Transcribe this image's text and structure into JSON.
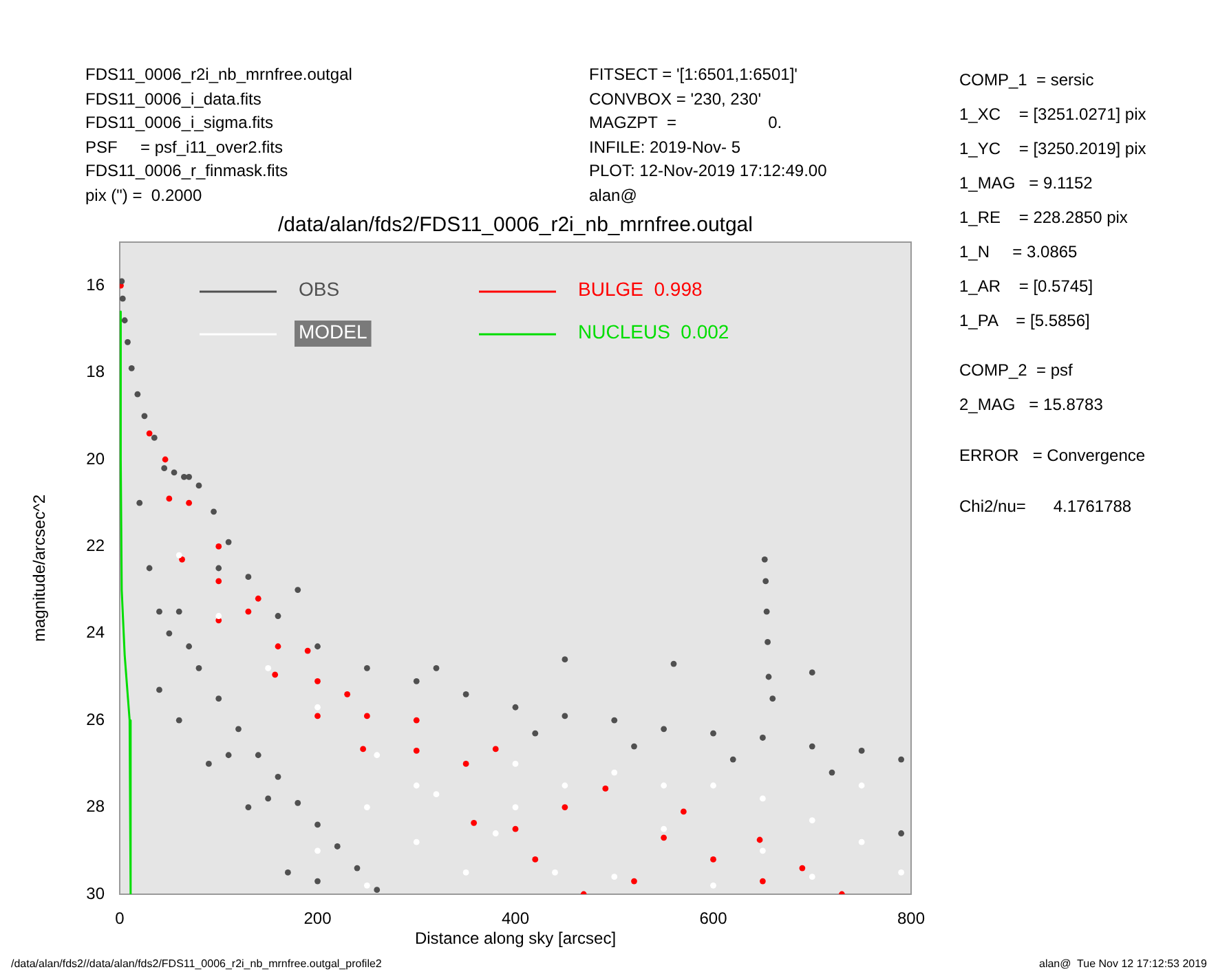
{
  "chart_data": {
    "type": "scatter",
    "title": "/data/alan/fds2/FDS11_0006_r2i_nb_mrnfree.outgal",
    "xlabel": "Distance along sky [arcsec]",
    "ylabel": "magnitude/arcsec^2",
    "xlim": [
      0,
      800
    ],
    "xticks": [
      0,
      200,
      400,
      600,
      800
    ],
    "ylim": [
      30,
      15
    ],
    "yticks": [
      16,
      18,
      20,
      22,
      24,
      26,
      28,
      30
    ],
    "grid": false,
    "legend": "top left",
    "marker": "circle",
    "series": [
      {
        "name": "OBS",
        "type": "scatter",
        "color": "#505050",
        "x": [
          2,
          3,
          5,
          8,
          12,
          18,
          25,
          35,
          45,
          55,
          65,
          70,
          80,
          95,
          110,
          130,
          160,
          200,
          250,
          300,
          350,
          400,
          450,
          500,
          550,
          600,
          650,
          700,
          750,
          790,
          320,
          450,
          560,
          700,
          180,
          100,
          652,
          653,
          654,
          655,
          656,
          660,
          20,
          30,
          40,
          50,
          60,
          70,
          80,
          100,
          120,
          140,
          160,
          180,
          200,
          220,
          240,
          260,
          90,
          130,
          170,
          110,
          150,
          200,
          40,
          60,
          790,
          420,
          520,
          620,
          720
        ],
        "values": [
          15.9,
          16.3,
          16.8,
          17.3,
          17.9,
          18.5,
          19,
          19.5,
          20.2,
          20.3,
          20.4,
          20.4,
          20.6,
          21.2,
          21.9,
          22.7,
          23.6,
          24.3,
          24.8,
          25.1,
          25.4,
          25.7,
          25.9,
          26,
          26.2,
          26.3,
          26.4,
          26.6,
          26.7,
          26.9,
          24.8,
          24.6,
          24.7,
          24.9,
          23,
          22.5,
          22.3,
          22.8,
          23.5,
          24.2,
          25,
          25.5,
          21,
          22.5,
          23.5,
          24,
          23.5,
          24.3,
          24.8,
          25.5,
          26.2,
          26.8,
          27.3,
          27.9,
          28.4,
          28.9,
          29.4,
          29.9,
          27,
          28,
          29.5,
          26.8,
          27.8,
          29.7,
          25.3,
          26,
          28.6,
          26.3,
          26.6,
          26.9,
          27.2
        ]
      },
      {
        "name": "MODEL",
        "type": "scatter",
        "color": "#ffffff",
        "x": [
          250,
          300,
          350,
          400,
          450,
          500,
          550,
          600,
          650,
          700,
          750,
          790,
          700,
          600,
          500,
          250,
          200,
          300,
          400,
          550,
          650,
          750,
          60,
          100,
          150,
          200,
          260,
          320,
          380,
          440
        ],
        "values": [
          28,
          28.8,
          29.5,
          28,
          27.5,
          27.2,
          27.5,
          27.5,
          27.8,
          28.3,
          28.8,
          29.5,
          29.6,
          29.8,
          29.6,
          29.8,
          29,
          27.5,
          27,
          28.5,
          29,
          27.5,
          22.2,
          23.6,
          24.8,
          25.7,
          26.8,
          27.7,
          28.6,
          29.5
        ]
      },
      {
        "name": "BULGE  0.998",
        "type": "scatter",
        "color": "#ff0000",
        "x": [
          1,
          46,
          70,
          100,
          140,
          190,
          230,
          300,
          380,
          491,
          570,
          647,
          690,
          730,
          30,
          50,
          63,
          100,
          157,
          200,
          246,
          358,
          420,
          469,
          100,
          160,
          250,
          350,
          450,
          550,
          600,
          650,
          520,
          400,
          300,
          200,
          130
        ],
        "values": [
          16,
          20,
          21,
          22,
          23.2,
          24.4,
          25.4,
          26,
          26.66,
          27.57,
          28.1,
          28.75,
          29.4,
          30,
          19.4,
          20.9,
          22.3,
          23.7,
          24.95,
          25.9,
          26.66,
          28.36,
          29.2,
          30,
          22.8,
          24.3,
          25.9,
          27,
          28,
          28.7,
          29.2,
          29.7,
          29.7,
          28.5,
          26.7,
          25.1,
          23.5
        ]
      },
      {
        "name": "NUCLEUS  0.002",
        "type": "line",
        "marker": "none",
        "color": "#00dd00",
        "x": [
          0,
          1,
          2,
          5,
          10,
          11
        ],
        "values": [
          16.6,
          20,
          23,
          24.5,
          26,
          30
        ]
      }
    ],
    "annotations": [
      "FDS11_0006_r2i_nb_mrnfree.outgal",
      "FDS11_0006_i_data.fits",
      "FDS11_0006_i_sigma.fits",
      "PSF     = psf_i11_over2.fits",
      "FDS11_0006_r_finmask.fits",
      "pix (\") =  0.2000",
      "FITSECT = '[1:6501,1:6501]'",
      "CONVBOX = '230, 230'",
      "MAGZPT  =                    0.",
      "INFILE: 2019-Nov- 5",
      "PLOT: 12-Nov-2019 17:12:49.00",
      "alan@",
      "COMP_1  = sersic",
      "1_XC    = [3251.0271] pix",
      "1_YC    = [3250.2019] pix",
      "1_MAG   = 9.1152",
      "1_RE    = 228.2850 pix",
      "1_N     = 3.0865",
      "1_AR    = [0.5745]",
      "1_PA    = [5.5856]",
      "COMP_2  = psf",
      "2_MAG   = 15.8783",
      "ERROR   = Convergence",
      "Chi2/nu=      4.1761788",
      "/data/alan/fds2//data/alan/fds2/FDS11_0006_r2i_nb_mrnfree.outgal_profile2",
      "alan@  Tue Nov 12 17:12:53 2019"
    ]
  }
}
